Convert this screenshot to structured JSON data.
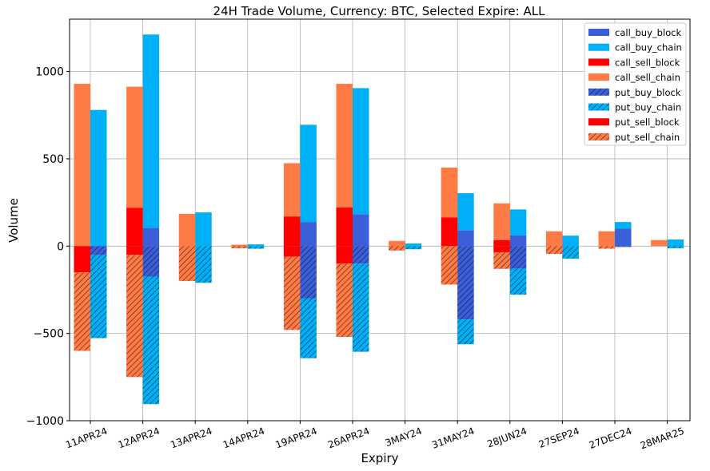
{
  "chart_data": {
    "type": "bar",
    "title": "24H Trade Volume, Currency: BTC, Selected Expire: ALL",
    "xlabel": "Expiry",
    "ylabel": "Volume",
    "ylim": [
      -1000,
      1300
    ],
    "yticks": [
      -1000,
      -500,
      0,
      500,
      1000
    ],
    "yticks_labels": [
      "−1000",
      "−500",
      "0",
      "500",
      "1000"
    ],
    "grid": true,
    "legend_position": "top-right",
    "categories": [
      "11APR24",
      "12APR24",
      "13APR24",
      "14APR24",
      "19APR24",
      "26APR24",
      "3MAY24",
      "31MAY24",
      "28JUN24",
      "27SEP24",
      "27DEC24",
      "28MAR25"
    ],
    "series": [
      {
        "name": "call_buy_block",
        "color": "#3a5fd8",
        "pattern": "solid",
        "group": "buy",
        "values": [
          0,
          105,
          0,
          0,
          138,
          183,
          0,
          90,
          62,
          0,
          100,
          0
        ]
      },
      {
        "name": "call_buy_chain",
        "color": "#00b0f6",
        "pattern": "solid",
        "group": "buy",
        "values": [
          780,
          1107,
          193,
          10,
          557,
          722,
          15,
          213,
          148,
          60,
          38,
          38
        ]
      },
      {
        "name": "call_sell_block",
        "color": "#ff0000",
        "pattern": "solid",
        "group": "sell",
        "values": [
          0,
          220,
          0,
          0,
          170,
          222,
          0,
          165,
          35,
          0,
          0,
          0
        ]
      },
      {
        "name": "call_sell_chain",
        "color": "#ff7a45",
        "pattern": "solid",
        "group": "sell",
        "values": [
          930,
          693,
          185,
          8,
          305,
          708,
          30,
          285,
          210,
          85,
          85,
          35
        ]
      },
      {
        "name": "put_buy_block",
        "color": "#3a5fd8",
        "pattern": "hatch",
        "group": "buy",
        "values": [
          -52,
          -175,
          0,
          0,
          -300,
          -100,
          0,
          -420,
          -130,
          0,
          -5,
          0
        ]
      },
      {
        "name": "put_buy_chain",
        "color": "#00b0f6",
        "pattern": "hatch",
        "group": "buy",
        "values": [
          -475,
          -730,
          -210,
          -15,
          -342,
          -505,
          -18,
          -142,
          -148,
          -72,
          0,
          -12
        ]
      },
      {
        "name": "put_sell_block",
        "color": "#ff0000",
        "pattern": "solid",
        "group": "sell",
        "values": [
          -150,
          -50,
          0,
          0,
          -60,
          -100,
          0,
          0,
          -35,
          0,
          0,
          0
        ]
      },
      {
        "name": "put_sell_chain",
        "color": "#ff7a45",
        "pattern": "hatch",
        "group": "sell",
        "values": [
          -450,
          -700,
          -200,
          -12,
          -420,
          -420,
          -25,
          -220,
          -95,
          -45,
          -15,
          0
        ]
      }
    ]
  }
}
